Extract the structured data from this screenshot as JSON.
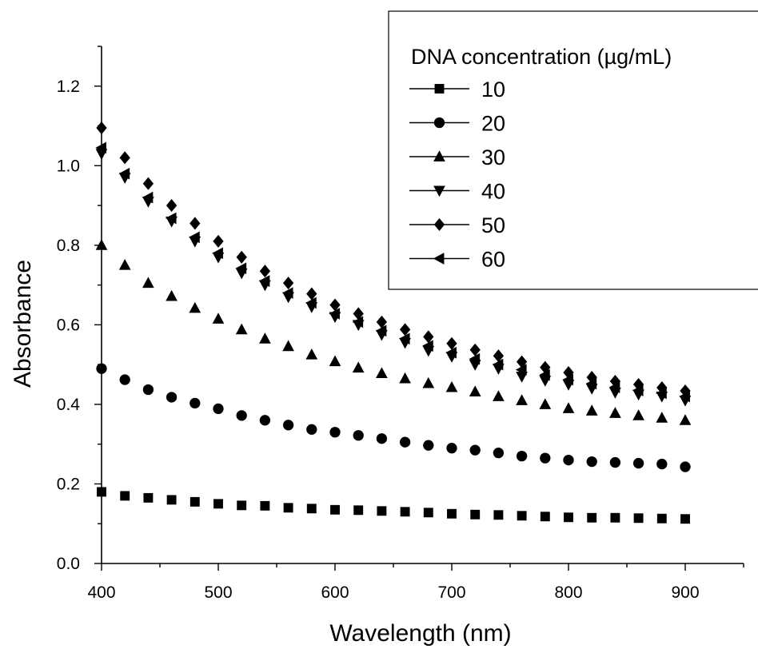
{
  "chart_data": {
    "type": "scatter",
    "xlabel": "Wavelength (nm)",
    "ylabel": "Absorbance",
    "xlim": [
      400,
      950
    ],
    "ylim": [
      0.0,
      1.3
    ],
    "x_ticks": [
      "400",
      "500",
      "600",
      "700",
      "800",
      "900"
    ],
    "y_ticks": [
      "0.0",
      "0.2",
      "0.4",
      "0.6",
      "0.8",
      "1.0",
      "1.2"
    ],
    "grid": false,
    "legend_title": "DNA concentration (µg/mL)",
    "legend_position": "top-right",
    "x": [
      400,
      420,
      440,
      460,
      480,
      500,
      520,
      540,
      560,
      580,
      600,
      620,
      640,
      660,
      680,
      700,
      720,
      740,
      760,
      780,
      800,
      820,
      840,
      860,
      880,
      900
    ],
    "series": [
      {
        "name": "10",
        "marker": "square",
        "values": [
          0.18,
          0.17,
          0.165,
          0.16,
          0.155,
          0.15,
          0.146,
          0.145,
          0.14,
          0.138,
          0.135,
          0.134,
          0.132,
          0.13,
          0.128,
          0.125,
          0.123,
          0.122,
          0.12,
          0.118,
          0.116,
          0.115,
          0.115,
          0.114,
          0.113,
          0.112
        ]
      },
      {
        "name": "20",
        "marker": "circle",
        "values": [
          0.49,
          0.462,
          0.437,
          0.418,
          0.403,
          0.389,
          0.372,
          0.36,
          0.348,
          0.337,
          0.33,
          0.322,
          0.314,
          0.305,
          0.297,
          0.29,
          0.285,
          0.278,
          0.27,
          0.265,
          0.26,
          0.256,
          0.254,
          0.252,
          0.25,
          0.243
        ]
      },
      {
        "name": "30",
        "marker": "triangle-up",
        "values": [
          0.8,
          0.75,
          0.705,
          0.672,
          0.642,
          0.615,
          0.588,
          0.565,
          0.546,
          0.525,
          0.508,
          0.492,
          0.478,
          0.465,
          0.453,
          0.443,
          0.432,
          0.42,
          0.41,
          0.4,
          0.39,
          0.384,
          0.378,
          0.372,
          0.366,
          0.36
        ]
      },
      {
        "name": "40",
        "marker": "triangle-down",
        "values": [
          1.03,
          0.97,
          0.91,
          0.86,
          0.81,
          0.77,
          0.73,
          0.7,
          0.67,
          0.645,
          0.62,
          0.6,
          0.575,
          0.555,
          0.535,
          0.52,
          0.5,
          0.49,
          0.47,
          0.46,
          0.45,
          0.44,
          0.43,
          0.425,
          0.42,
          0.41
        ]
      },
      {
        "name": "50",
        "marker": "diamond",
        "values": [
          1.095,
          1.02,
          0.955,
          0.9,
          0.855,
          0.81,
          0.77,
          0.735,
          0.705,
          0.678,
          0.65,
          0.628,
          0.607,
          0.588,
          0.57,
          0.553,
          0.537,
          0.522,
          0.507,
          0.493,
          0.48,
          0.468,
          0.458,
          0.45,
          0.442,
          0.434
        ]
      },
      {
        "name": "60",
        "marker": "triangle-left",
        "values": [
          1.045,
          0.98,
          0.92,
          0.868,
          0.82,
          0.78,
          0.742,
          0.71,
          0.68,
          0.655,
          0.628,
          0.607,
          0.585,
          0.565,
          0.547,
          0.53,
          0.514,
          0.5,
          0.487,
          0.474,
          0.462,
          0.452,
          0.443,
          0.435,
          0.428,
          0.42
        ]
      }
    ]
  }
}
